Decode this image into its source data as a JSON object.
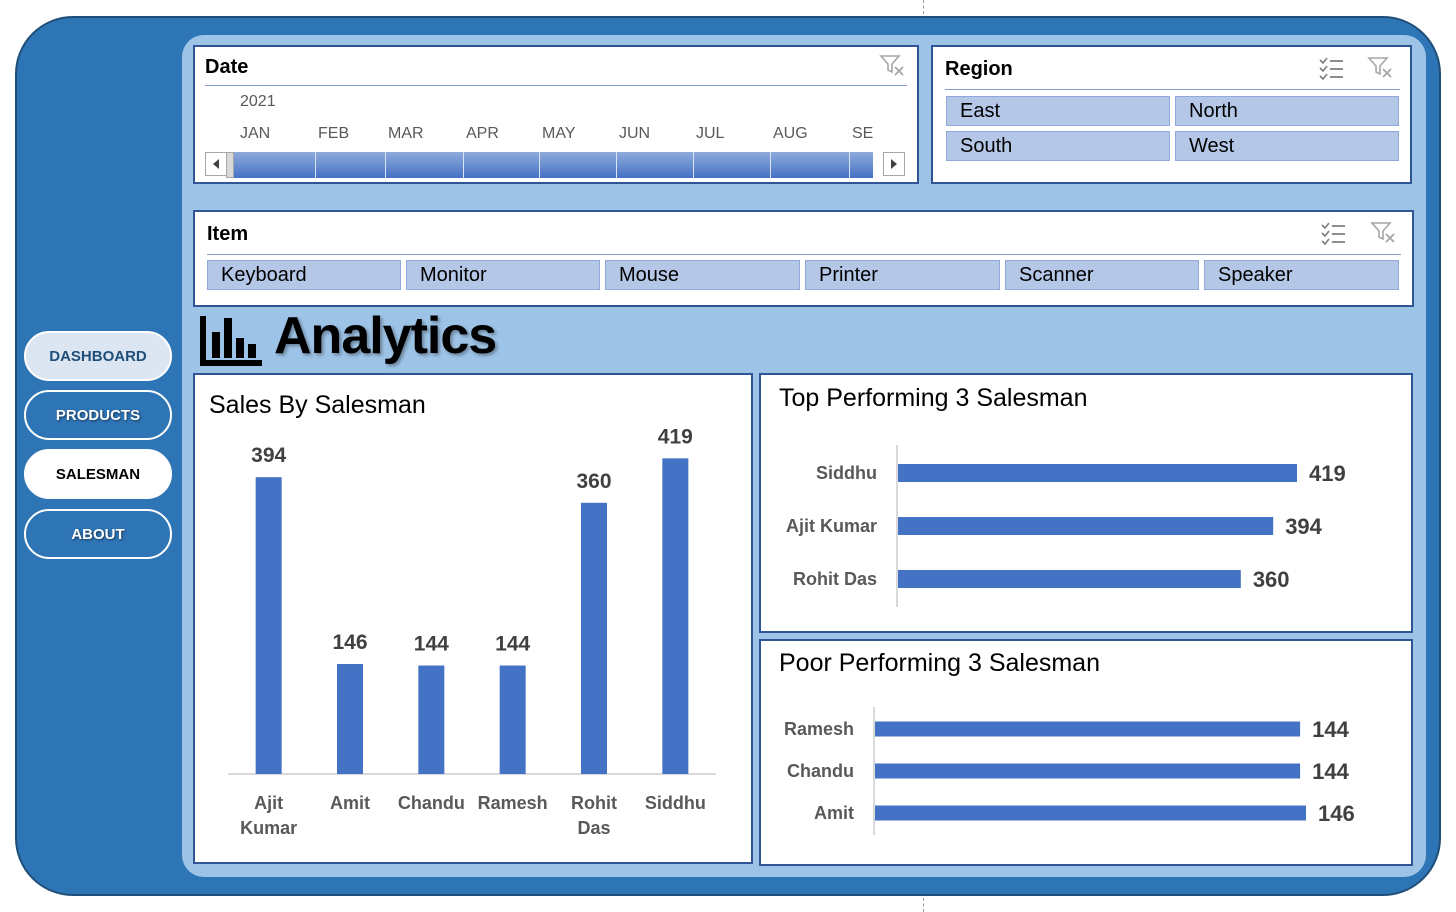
{
  "nav": {
    "items": [
      {
        "label": "DASHBOARD"
      },
      {
        "label": "PRODUCTS"
      },
      {
        "label": "SALESMAN"
      },
      {
        "label": "ABOUT"
      }
    ]
  },
  "date_slicer": {
    "title": "Date",
    "year": "2021",
    "months": [
      "JAN",
      "FEB",
      "MAR",
      "APR",
      "MAY",
      "JUN",
      "JUL",
      "AUG",
      "SE"
    ]
  },
  "region_slicer": {
    "title": "Region",
    "items": [
      {
        "label": "East"
      },
      {
        "label": "North"
      },
      {
        "label": "South"
      },
      {
        "label": "West"
      }
    ]
  },
  "item_slicer": {
    "title": "Item",
    "items": [
      {
        "label": "Keyboard"
      },
      {
        "label": "Monitor"
      },
      {
        "label": "Mouse"
      },
      {
        "label": "Printer"
      },
      {
        "label": "Scanner"
      },
      {
        "label": "Speaker"
      }
    ]
  },
  "heading": {
    "title": "Analytics",
    "icon": "bar-chart-icon"
  },
  "colors": {
    "bar": "#4472c4",
    "frame": "#2e75b6",
    "inner": "#9dc3e6",
    "chip": "#b4c7e7"
  },
  "chart_data": [
    {
      "type": "bar",
      "title": "Sales By Salesman",
      "categories": [
        "Ajit Kumar",
        "Amit",
        "Chandu",
        "Ramesh",
        "Rohit Das",
        "Siddhu"
      ],
      "values": [
        394,
        146,
        144,
        144,
        360,
        419
      ],
      "xlabel": "",
      "ylabel": "",
      "ylim": [
        0,
        450
      ]
    },
    {
      "type": "bar",
      "orientation": "horizontal",
      "title": "Top Performing 3 Salesman",
      "categories": [
        "Siddhu",
        "Ajit Kumar",
        "Rohit Das"
      ],
      "values": [
        419,
        394,
        360
      ],
      "xlim": [
        0,
        419
      ]
    },
    {
      "type": "bar",
      "orientation": "horizontal",
      "title": "Poor Performing 3 Salesman",
      "categories": [
        "Ramesh",
        "Chandu",
        "Amit"
      ],
      "values": [
        144,
        144,
        146
      ],
      "xlim": [
        0,
        146
      ]
    }
  ]
}
